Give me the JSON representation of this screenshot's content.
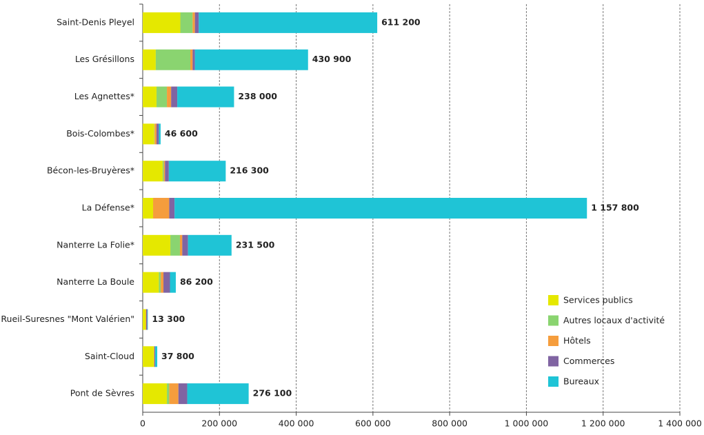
{
  "chart_data": {
    "type": "stacked-bar-horizontal",
    "categories": [
      "Saint-Denis Pleyel",
      "Les Grésillons",
      "Les Agnettes*",
      "Bois-Colombes*",
      "Bécon-les-Bruyères*",
      "La Défense*",
      "Nanterre La Folie*",
      "Nanterre La Boule",
      "Rueil-Suresnes \"Mont Valérien\"",
      "Saint-Cloud",
      "Pont de Sèvres"
    ],
    "series": [
      {
        "name": "Services publics",
        "color": "#e5e800",
        "values": [
          98000,
          34000,
          36000,
          30000,
          52000,
          27000,
          72000,
          42000,
          8000,
          29000,
          63000
        ]
      },
      {
        "name": "Autres locaux d'activité",
        "color": "#8ad470",
        "values": [
          32000,
          90000,
          27000,
          1000,
          3000,
          0,
          25000,
          5000,
          0,
          500,
          6000
        ]
      },
      {
        "name": "Hôtels",
        "color": "#f59d3d",
        "values": [
          6000,
          6000,
          11000,
          5000,
          3000,
          42000,
          6000,
          7000,
          1000,
          1000,
          24000
        ]
      },
      {
        "name": "Commerces",
        "color": "#8064a2",
        "values": [
          10000,
          6000,
          16000,
          6000,
          10000,
          14000,
          15000,
          17000,
          3000,
          2000,
          23000
        ]
      },
      {
        "name": "Bureaux",
        "color": "#1fc4d6",
        "values": [
          465200,
          294900,
          148000,
          4600,
          148300,
          1074800,
          113500,
          15200,
          1300,
          5300,
          160100
        ]
      }
    ],
    "totals": [
      611200,
      430900,
      238000,
      46600,
      216300,
      1157800,
      231500,
      86200,
      13300,
      37800,
      276100
    ],
    "total_labels": [
      "611 200",
      "430 900",
      "238 000",
      "46 600",
      "216 300",
      "1 157 800",
      "231 500",
      "86 200",
      "13 300",
      "37 800",
      "276 100"
    ],
    "xlim": [
      0,
      1400000
    ],
    "xticks": [
      0,
      {
        "value": 200000,
        "label": "200 000"
      },
      {
        "value": 400000,
        "label": "400 000"
      },
      {
        "value": 600000,
        "label": "600 000"
      },
      {
        "value": 800000,
        "label": "800 000"
      },
      {
        "value": 1000000,
        "label": "1 000 000"
      },
      {
        "value": 1200000,
        "label": "1 200 000"
      },
      {
        "value": 1400000,
        "label": "1 400 000"
      }
    ],
    "grid": true,
    "legend": "lower-right"
  }
}
